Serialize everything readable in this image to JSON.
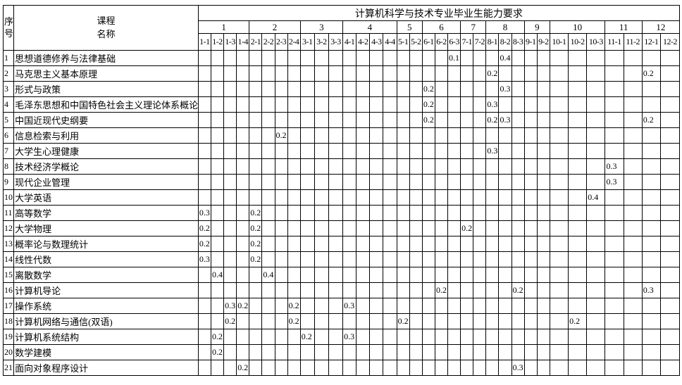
{
  "header": {
    "seq_label": "序\n号",
    "course_label": "课程\n名称",
    "banner": "计算机科学与技术专业毕业生能力要求",
    "groups": [
      {
        "label": "1",
        "span": 4
      },
      {
        "label": "2",
        "span": 4
      },
      {
        "label": "3",
        "span": 3
      },
      {
        "label": "4",
        "span": 4
      },
      {
        "label": "5",
        "span": 2
      },
      {
        "label": "6",
        "span": 3
      },
      {
        "label": "7",
        "span": 2
      },
      {
        "label": "8",
        "span": 3
      },
      {
        "label": "9",
        "span": 2
      },
      {
        "label": "10",
        "span": 3
      },
      {
        "label": "11",
        "span": 2
      },
      {
        "label": "12",
        "span": 2
      }
    ],
    "subcolumns": [
      "1-1",
      "1-2",
      "1-3",
      "1-4",
      "2-1",
      "2-2",
      "2-3",
      "2-4",
      "3-1",
      "3-2",
      "3-3",
      "4-1",
      "4-2",
      "4-3",
      "4-4",
      "5-1",
      "5-2",
      "6-1",
      "6-2",
      "6-3",
      "7-1",
      "7-2",
      "8-1",
      "8-2",
      "8-3",
      "9-1",
      "9-2",
      "10-1",
      "10-2",
      "10-3",
      "11-1",
      "11-2",
      "12-1",
      "12-2"
    ]
  },
  "rows": [
    {
      "num": "1",
      "name": "思想道德修养与法律基础",
      "values": {
        "6-3": "0.1",
        "8-2": "0.4"
      }
    },
    {
      "num": "2",
      "name": "马克思主义基本原理",
      "values": {
        "8-1": "0.2",
        "12-1": "0.2"
      }
    },
    {
      "num": "3",
      "name": "形式与政策",
      "values": {
        "6-1": "0.2",
        "8-2": "0.3"
      }
    },
    {
      "num": "4",
      "name": "毛泽东思想和中国特色社会主义理论体系概论",
      "values": {
        "6-1": "0.2",
        "8-1": "0.3"
      }
    },
    {
      "num": "5",
      "name": "中国近现代史纲要",
      "values": {
        "6-1": "0.2",
        "8-1": "0.2",
        "8-2": "0.3",
        "12-1": "0.2"
      }
    },
    {
      "num": "6",
      "name": "信息检索与利用",
      "values": {
        "2-3": "0.2"
      }
    },
    {
      "num": "7",
      "name": "大学生心理健康",
      "values": {
        "8-1": "0.3"
      }
    },
    {
      "num": "8",
      "name": "技术经济学概论",
      "values": {
        "11-1": "0.3"
      }
    },
    {
      "num": "9",
      "name": "现代企业管理",
      "values": {
        "11-1": "0.3"
      }
    },
    {
      "num": "10",
      "name": "大学英语",
      "values": {
        "10-3": "0.4"
      }
    },
    {
      "num": "11",
      "name": "高等数学",
      "values": {
        "1-1": "0.3",
        "2-1": "0.2"
      }
    },
    {
      "num": "12",
      "name": "大学物理",
      "values": {
        "1-1": "0.2",
        "2-1": "0.2",
        "7-1": "0.2"
      }
    },
    {
      "num": "13",
      "name": "概率论与数理统计",
      "values": {
        "1-1": "0.2",
        "2-1": "0.2"
      }
    },
    {
      "num": "14",
      "name": "线性代数",
      "values": {
        "1-1": "0.3",
        "2-1": "0.2"
      }
    },
    {
      "num": "15",
      "name": "离散数学",
      "values": {
        "1-2": "0.4",
        "2-2": "0.4"
      }
    },
    {
      "num": "16",
      "name": "计算机导论",
      "values": {
        "6-2": "0.2",
        "8-3": "0.2",
        "12-1": "0.3"
      }
    },
    {
      "num": "17",
      "name": "操作系统",
      "values": {
        "1-3": "0.3",
        "1-4": "0.2",
        "2-4": "0.2",
        "4-1": "0.3"
      }
    },
    {
      "num": "18",
      "name": "计算机网络与通信(双语)",
      "values": {
        "1-3": "0.2",
        "2-4": "0.2",
        "5-1": "0.2",
        "10-2": "0.2"
      }
    },
    {
      "num": "19",
      "name": "计算机系统结构",
      "values": {
        "1-2": "0.2",
        "3-1": "0.2",
        "4-1": "0.3"
      }
    },
    {
      "num": "20",
      "name": "数学建模",
      "values": {
        "1-2": "0.2"
      }
    },
    {
      "num": "21",
      "name": "面向对象程序设计",
      "values": {
        "1-4": "0.2",
        "8-3": "0.3"
      }
    }
  ],
  "colors": {
    "border": "#000000",
    "text": "#000000",
    "background": "#ffffff"
  }
}
